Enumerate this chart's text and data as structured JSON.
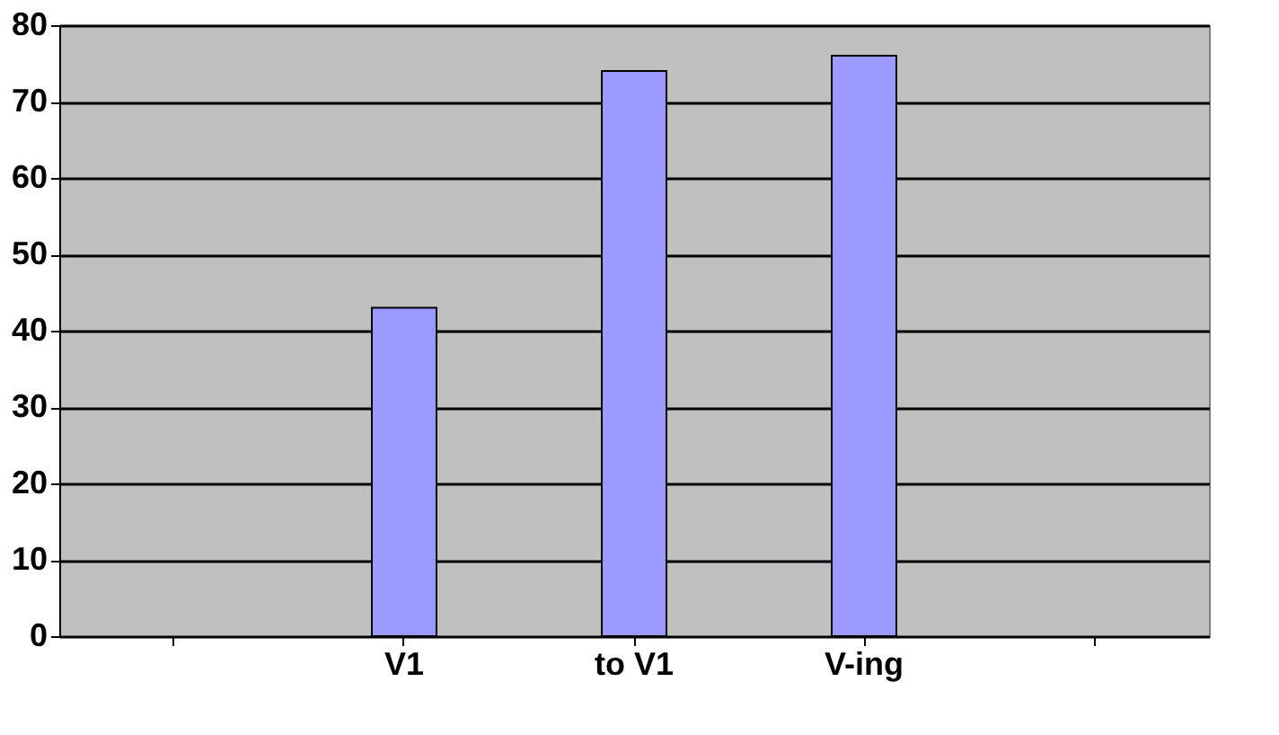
{
  "chart_data": {
    "type": "bar",
    "categories": [
      null,
      "V1",
      "to V1",
      "V-ing",
      null
    ],
    "values": [
      null,
      43,
      74,
      76,
      null
    ],
    "color": "#9999ff",
    "ylim": [
      0,
      80
    ],
    "yticks": [
      0,
      10,
      20,
      30,
      40,
      50,
      60,
      70,
      80
    ],
    "grid": "y"
  }
}
